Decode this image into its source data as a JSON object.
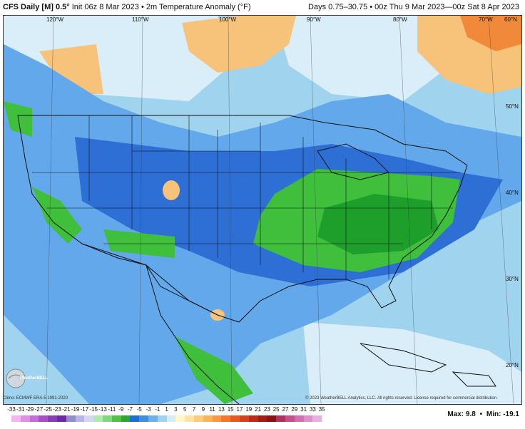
{
  "header": {
    "model": "CFS Daily [M] 0.5°",
    "init": "Init 06z 8 Mar 2023",
    "field": "2m Temperature Anomaly (°F)",
    "valid": "Days 0.75–30.75 • 00z Thu 9 Mar 2023—00z Sat 8 Apr 2023"
  },
  "map": {
    "lon_labels": [
      "120°W",
      "110°W",
      "100°W",
      "90°W",
      "80°W",
      "70°W",
      "60°N"
    ],
    "lat_labels": [
      "50°N",
      "40°N",
      "30°N",
      "20°N"
    ],
    "logo_text": "WeatherBELL",
    "colors": {
      "strong_cold": "#1e9e2a",
      "cold": "#3fbf3c",
      "cool": "#2e6fd6",
      "mild_cool": "#63a8ea",
      "slight_cool": "#9fd3ee",
      "near_normal": "#d9eef8",
      "warm": "#f7c27a",
      "hot": "#f08a3a",
      "border": "#111111"
    }
  },
  "footer": {
    "climo": "Climo: ECMWF ERA-5 1991-2020",
    "copyright": "© 2023 WeatherBELL Analytics, LLC. All rights reserved. License required for commercial distribution.",
    "max_label": "Max:",
    "max_value": "9.8",
    "sep": "•",
    "min_label": "Min:",
    "min_value": "-19.1",
    "legend_ticks": [
      "-33",
      "-31",
      "-29",
      "-27",
      "-25",
      "-23",
      "-21",
      "-19",
      "-17",
      "-15",
      "-13",
      "-11",
      "-9",
      "-7",
      "-5",
      "-3",
      "-1",
      "1",
      "3",
      "5",
      "7",
      "9",
      "11",
      "13",
      "15",
      "17",
      "19",
      "21",
      "23",
      "25",
      "27",
      "29",
      "31",
      "33",
      "35"
    ],
    "legend_colors": [
      "#f5b5f0",
      "#e28de6",
      "#c86ad8",
      "#a84fc6",
      "#8a3cb3",
      "#6e2ba0",
      "#8f8fcf",
      "#b5b5e6",
      "#d6d6f2",
      "#b0e8b0",
      "#7fd87a",
      "#4fc24a",
      "#2ea632",
      "#1d6fd0",
      "#3f8ee0",
      "#6fb0ea",
      "#a2d2f2",
      "#d4ecf8",
      "#fff7c9",
      "#ffe3a0",
      "#ffcc7a",
      "#ffb25a",
      "#ff9640",
      "#f5772e",
      "#e85a22",
      "#d6401c",
      "#bf2a18",
      "#a61a16",
      "#8c1014",
      "#b03060",
      "#c8508a",
      "#d070b0",
      "#dd90c8",
      "#e8b0dc"
    ]
  }
}
